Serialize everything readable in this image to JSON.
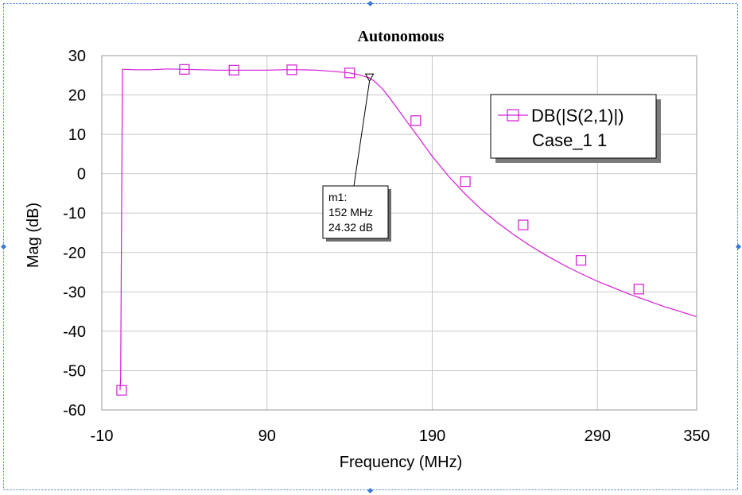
{
  "colors": {
    "series": "#d61ad6",
    "grid": "#c8c8c8",
    "selection": "#3a78d8"
  },
  "chart_data": {
    "type": "line",
    "title": "Autonomous",
    "xlabel": "Frequency (MHz)",
    "ylabel": "Mag (dB)",
    "xlim": [
      -10,
      350
    ],
    "ylim": [
      -60,
      30
    ],
    "x_ticks": [
      -10,
      90,
      190,
      290,
      350
    ],
    "y_ticks": [
      30,
      20,
      10,
      0,
      -10,
      -20,
      -30,
      -40,
      -50,
      -60
    ],
    "grid": true,
    "legend": {
      "placement": "top-right",
      "entries": [
        "DB(|S(2,1)|)",
        "Case_1 1"
      ]
    },
    "series": [
      {
        "name": "DB(|S(2,1)|)",
        "x": [
          1,
          1.4,
          2,
          2.5,
          3,
          4,
          10,
          20,
          30,
          40,
          50,
          60,
          70,
          80,
          90,
          100,
          110,
          120,
          130,
          140,
          145,
          150,
          152,
          155,
          160,
          165,
          170,
          175,
          180,
          190,
          200,
          210,
          220,
          230,
          240,
          250,
          260,
          270,
          280,
          290,
          300,
          310,
          320,
          330,
          340,
          350
        ],
        "y": [
          -55,
          -52,
          -10,
          26.5,
          26.5,
          26.5,
          26.4,
          26.4,
          26.6,
          26.5,
          26.4,
          26.3,
          26.3,
          26.3,
          26.3,
          26.4,
          26.4,
          26.3,
          26.0,
          25.6,
          25.2,
          24.6,
          24.32,
          23.5,
          21.5,
          18.8,
          15.9,
          13.0,
          10.2,
          4.4,
          -0.7,
          -5.2,
          -9.2,
          -12.6,
          -15.7,
          -18.5,
          -21.0,
          -23.3,
          -25.4,
          -27.3,
          -29.0,
          -30.7,
          -32.2,
          -33.7,
          -35.0,
          -36.3
        ],
        "markers_x": [
          2,
          40,
          70,
          105,
          140,
          180,
          210,
          245,
          280,
          315
        ],
        "markers_y": [
          -55,
          26.5,
          26.3,
          26.4,
          25.6,
          13.5,
          -2.0,
          -13.0,
          -22.0,
          -29.3
        ]
      }
    ],
    "annotations": [
      {
        "label": "m1:",
        "line1": "152 MHz",
        "line2": "24.32 dB",
        "x": 152,
        "y": 24.32
      }
    ]
  }
}
